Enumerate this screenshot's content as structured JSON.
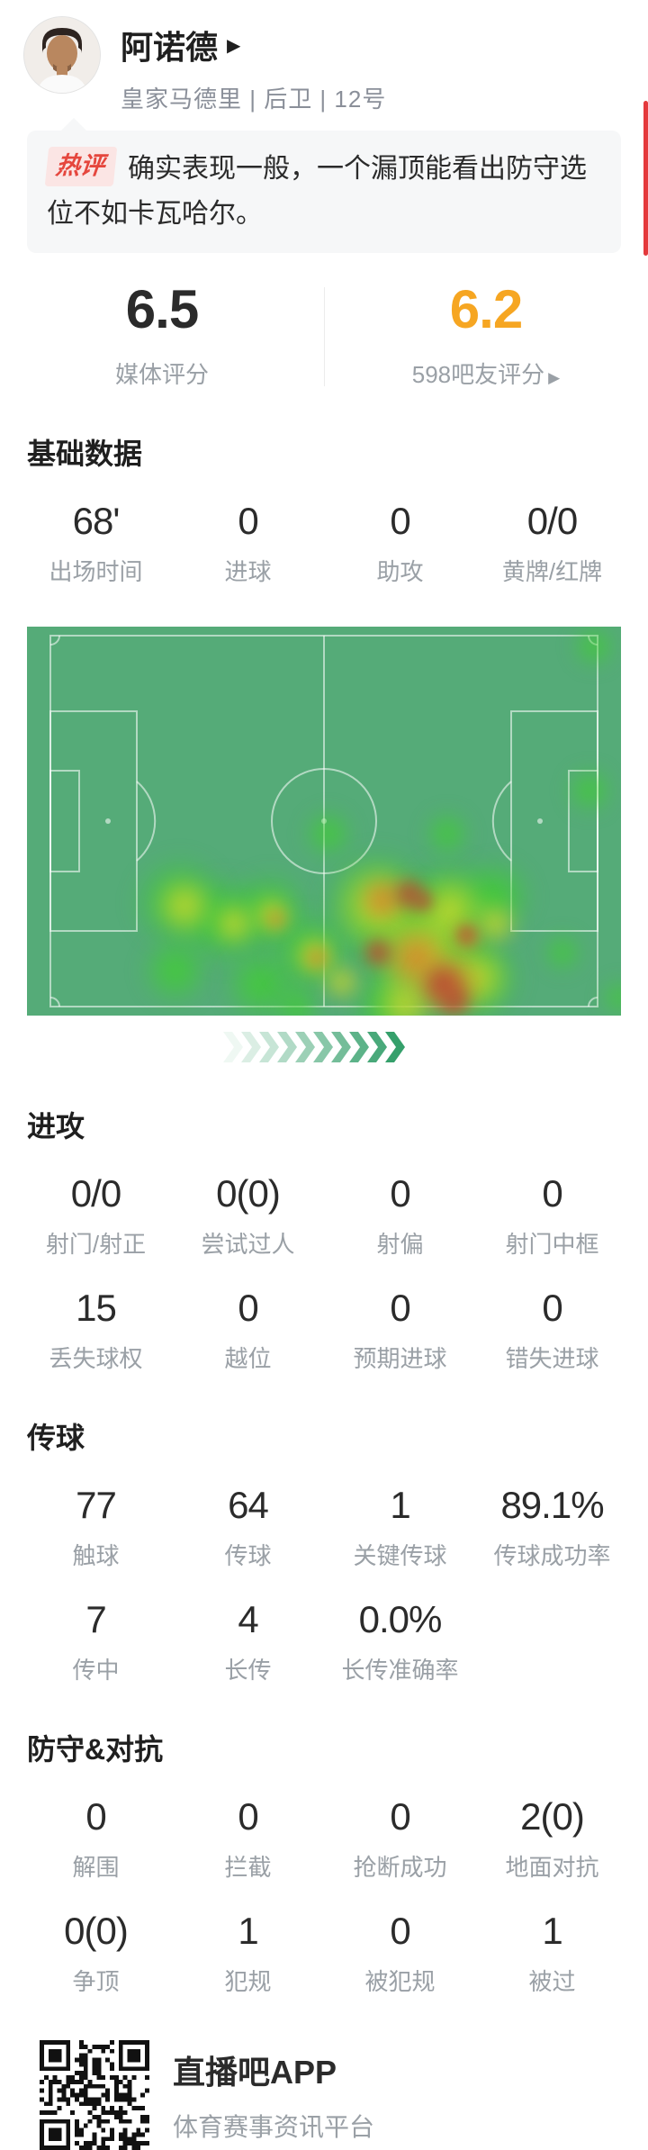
{
  "header": {
    "name": "阿诺德",
    "name_arrow": "▶",
    "meta": "皇家马德里 | 后卫 | 12号"
  },
  "hot_comment": {
    "badge": "热评",
    "text": "确实表现一般，一个漏顶能看出防守选位不如卡瓦哈尔。"
  },
  "ratings": {
    "media": {
      "value": "6.5",
      "label": "媒体评分"
    },
    "fans": {
      "value": "6.2",
      "label": "598吧友评分",
      "arrow": "▶"
    }
  },
  "sections": [
    {
      "title": "基础数据",
      "rows": [
        [
          {
            "value": "68'",
            "label": "出场时间"
          },
          {
            "value": "0",
            "label": "进球"
          },
          {
            "value": "0",
            "label": "助攻"
          },
          {
            "value": "0/0",
            "label": "黄牌/红牌"
          }
        ]
      ]
    },
    {
      "title": "进攻",
      "rows": [
        [
          {
            "value": "0/0",
            "label": "射门/射正"
          },
          {
            "value": "0(0)",
            "label": "尝试过人"
          },
          {
            "value": "0",
            "label": "射偏"
          },
          {
            "value": "0",
            "label": "射门中框"
          }
        ],
        [
          {
            "value": "15",
            "label": "丢失球权"
          },
          {
            "value": "0",
            "label": "越位"
          },
          {
            "value": "0",
            "label": "预期进球"
          },
          {
            "value": "0",
            "label": "错失进球"
          }
        ]
      ]
    },
    {
      "title": "传球",
      "rows": [
        [
          {
            "value": "77",
            "label": "触球"
          },
          {
            "value": "64",
            "label": "传球"
          },
          {
            "value": "1",
            "label": "关键传球"
          },
          {
            "value": "89.1%",
            "label": "传球成功率"
          }
        ],
        [
          {
            "value": "7",
            "label": "传中"
          },
          {
            "value": "4",
            "label": "长传"
          },
          {
            "value": "0.0%",
            "label": "长传准确率"
          }
        ]
      ]
    },
    {
      "title": "防守&对抗",
      "rows": [
        [
          {
            "value": "0",
            "label": "解围"
          },
          {
            "value": "0",
            "label": "拦截"
          },
          {
            "value": "0",
            "label": "抢断成功"
          },
          {
            "value": "2(0)",
            "label": "地面对抗"
          }
        ],
        [
          {
            "value": "0(0)",
            "label": "争顶"
          },
          {
            "value": "1",
            "label": "犯规"
          },
          {
            "value": "0",
            "label": "被犯规"
          },
          {
            "value": "1",
            "label": "被过"
          }
        ]
      ]
    }
  ],
  "heatmap": {
    "pitch_color": "#55ab78",
    "line_color": "rgba(255,255,255,0.55)",
    "blobs": {
      "green": [
        [
          170,
          307,
          58
        ],
        [
          220,
          327,
          56
        ],
        [
          270,
          317,
          50
        ],
        [
          165,
          382,
          42
        ],
        [
          260,
          397,
          46
        ],
        [
          315,
          362,
          50
        ],
        [
          390,
          312,
          72
        ],
        [
          440,
          362,
          84
        ],
        [
          470,
          312,
          62
        ],
        [
          500,
          390,
          55
        ],
        [
          335,
          230,
          30
        ],
        [
          467,
          230,
          28
        ],
        [
          625,
          182,
          28
        ],
        [
          630,
          22,
          26
        ],
        [
          595,
          362,
          24
        ],
        [
          658,
          412,
          22
        ],
        [
          400,
          422,
          44
        ],
        [
          300,
          422,
          30
        ],
        [
          520,
          300,
          46
        ]
      ],
      "yellow": [
        [
          175,
          310,
          38
        ],
        [
          230,
          330,
          30
        ],
        [
          272,
          320,
          28
        ],
        [
          320,
          365,
          30
        ],
        [
          390,
          310,
          56
        ],
        [
          440,
          365,
          66
        ],
        [
          470,
          315,
          46
        ],
        [
          500,
          390,
          42
        ],
        [
          350,
          395,
          26
        ],
        [
          520,
          330,
          30
        ],
        [
          420,
          420,
          40
        ]
      ],
      "orange": [
        [
          395,
          303,
          32
        ],
        [
          432,
          368,
          42
        ],
        [
          468,
          398,
          46
        ],
        [
          277,
          325,
          15
        ],
        [
          322,
          368,
          17
        ],
        [
          490,
          345,
          20
        ]
      ],
      "red": [
        [
          425,
          297,
          27
        ],
        [
          390,
          362,
          25
        ],
        [
          462,
          397,
          32
        ],
        [
          488,
          342,
          16
        ],
        [
          440,
          305,
          18
        ],
        [
          475,
          415,
          26
        ]
      ]
    }
  },
  "chevrons": {
    "count": 10,
    "color": "#35a06b"
  },
  "footer": {
    "app_name": "直播吧APP",
    "app_desc": "体育赛事资讯平台"
  },
  "colors": {
    "accent_red": "#e4393c",
    "rating_orange": "#f6a622",
    "badge_red": "#e5463d",
    "label_gray": "#9aa0a6"
  }
}
